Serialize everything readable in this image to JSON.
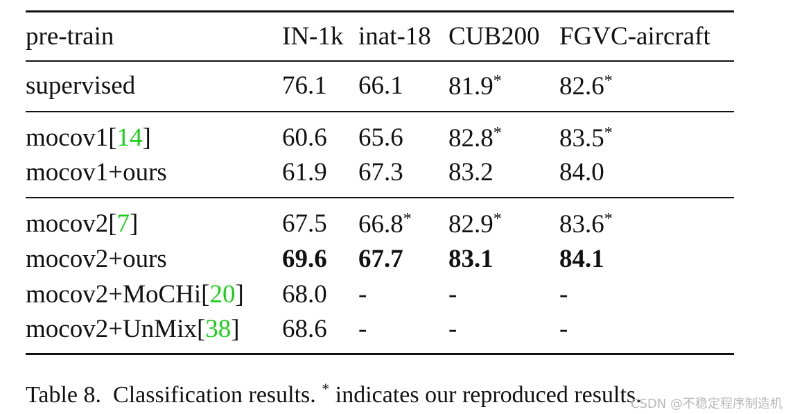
{
  "table": {
    "header": [
      "pre-train",
      "IN-1k",
      "inat-18",
      "CUB200",
      "FGVC-aircraft"
    ],
    "rows": [
      {
        "name": "supervised",
        "cite": "",
        "cells": [
          "76.1",
          "66.1",
          "81.9",
          "82.6"
        ],
        "star": [
          false,
          false,
          true,
          true
        ],
        "bold": false
      },
      {
        "name": "mocov1",
        "cite": "14",
        "cells": [
          "60.6",
          "65.6",
          "82.8",
          "83.5"
        ],
        "star": [
          false,
          false,
          true,
          true
        ],
        "bold": false
      },
      {
        "name": "mocov1+ours",
        "cite": "",
        "cells": [
          "61.9",
          "67.3",
          "83.2",
          "84.0"
        ],
        "star": [
          false,
          false,
          false,
          false
        ],
        "bold": false
      },
      {
        "name": "mocov2",
        "cite": "7",
        "cells": [
          "67.5",
          "66.8",
          "82.9",
          "83.6"
        ],
        "star": [
          false,
          true,
          true,
          true
        ],
        "bold": false
      },
      {
        "name": "mocov2+ours",
        "cite": "",
        "cells": [
          "69.6",
          "67.7",
          "83.1",
          "84.1"
        ],
        "star": [
          false,
          false,
          false,
          false
        ],
        "bold": true
      },
      {
        "name": "mocov2+MoCHi",
        "cite": "20",
        "cells": [
          "68.0",
          "-",
          "-",
          "-"
        ],
        "star": [
          false,
          false,
          false,
          false
        ],
        "bold": false
      },
      {
        "name": "mocov2+UnMix",
        "cite": "38",
        "cells": [
          "68.6",
          "-",
          "-",
          "-"
        ],
        "star": [
          false,
          false,
          false,
          false
        ],
        "bold": false
      }
    ],
    "star_symbol": "*",
    "cite_color": "#19d019"
  },
  "caption": {
    "label": "Table 8.",
    "text_before": "Classification results.",
    "symbol": "*",
    "text_after": "indicates our reproduced results."
  },
  "watermark": "CSDN @不稳定程序制造机"
}
